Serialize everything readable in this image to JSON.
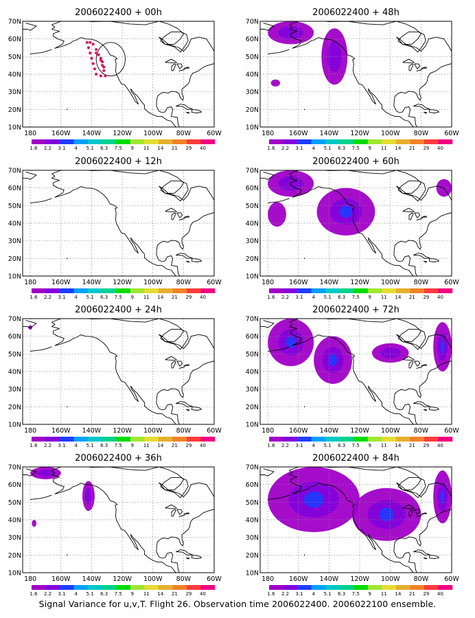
{
  "figure": {
    "caption": "Signal Variance for u,v,T. Flight 26. Observation time 2006022400. 2006022100 ensemble."
  },
  "map": {
    "lat_labels": [
      "70N",
      "60N",
      "50N",
      "40N",
      "30N",
      "20N",
      "10N"
    ],
    "lon_labels": [
      "180",
      "160W",
      "140W",
      "120W",
      "100W",
      "80W",
      "60W"
    ],
    "lat_values": [
      70,
      60,
      50,
      40,
      30,
      20,
      10
    ],
    "lon_values": [
      -180,
      -160,
      -140,
      -120,
      -100,
      -80,
      -60
    ]
  },
  "colorbar": {
    "labels": [
      "1.6",
      "2.2",
      "3.1",
      "4",
      "5.1",
      "6.3",
      "7.5",
      "9",
      "11",
      "14",
      "21",
      "29",
      "40"
    ],
    "colors": [
      "#a000c8",
      "#8200dc",
      "#1e3cff",
      "#00a0ff",
      "#00c8c8",
      "#00d28c",
      "#00dc00",
      "#a0e632",
      "#e6dc32",
      "#e6af2d",
      "#f08228",
      "#fa3c3c",
      "#f00082"
    ]
  },
  "colors": {
    "frame": "#000000",
    "grid": "#888888",
    "coast": "#000000",
    "obs_marker": "#e0105a",
    "variance_low": "#a000c8",
    "variance_mid": "#8200dc",
    "variance_high": "#1e3cff"
  },
  "chart_data": [
    {
      "type": "heatmap",
      "title": "2006022400 + 00h",
      "valid_time": "2006022400",
      "lead": "00h",
      "regions": [],
      "observations": "dropsonde flight track over NE Pacific (approx. 38-58N, 143-128W)",
      "levels": [
        1.6,
        2.2,
        3.1,
        4,
        5.1,
        6.3,
        7.5,
        9,
        11,
        14,
        21,
        29,
        40
      ]
    },
    {
      "type": "heatmap",
      "title": "2006022400 + 12h",
      "valid_time": "2006022400",
      "lead": "12h",
      "regions": [],
      "levels": [
        1.6,
        2.2,
        3.1,
        4,
        5.1,
        6.3,
        7.5,
        9,
        11,
        14,
        21,
        29,
        40
      ]
    },
    {
      "type": "heatmap",
      "title": "2006022400 + 24h",
      "valid_time": "2006022400",
      "lead": "24h",
      "regions": [
        {
          "lon": -180,
          "lat": 65,
          "max_value": 1.6
        }
      ],
      "levels": [
        1.6,
        2.2,
        3.1,
        4,
        5.1,
        6.3,
        7.5,
        9,
        11,
        14,
        21,
        29,
        40
      ]
    },
    {
      "type": "heatmap",
      "title": "2006022400 + 36h",
      "valid_time": "2006022400",
      "lead": "36h",
      "regions": [
        {
          "lon_range": [
            -180,
            -160
          ],
          "lat_range": [
            63,
            70
          ],
          "max_value": 2.2
        },
        {
          "lon_range": [
            -146,
            -138
          ],
          "lat_range": [
            45,
            62
          ],
          "max_value": 2.2
        },
        {
          "lon_range": [
            -179,
            -176
          ],
          "lat_range": [
            36,
            40
          ],
          "max_value": 1.6
        }
      ],
      "levels": [
        1.6,
        2.2,
        3.1,
        4,
        5.1,
        6.3,
        7.5,
        9,
        11,
        14,
        21,
        29,
        40
      ]
    },
    {
      "type": "heatmap",
      "title": "2006022400 + 48h",
      "valid_time": "2006022400",
      "lead": "48h",
      "regions": [
        {
          "lon_range": [
            -180,
            -150
          ],
          "lat_range": [
            57,
            70
          ],
          "max_value": 2.2
        },
        {
          "lon_range": [
            -145,
            -128
          ],
          "lat_range": [
            34,
            66
          ],
          "max_value": 2.2
        },
        {
          "lon_range": [
            -178,
            -172
          ],
          "lat_range": [
            33,
            37
          ],
          "max_value": 1.6
        }
      ],
      "levels": [
        1.6,
        2.2,
        3.1,
        4,
        5.1,
        6.3,
        7.5,
        9,
        11,
        14,
        21,
        29,
        40
      ]
    },
    {
      "type": "heatmap",
      "title": "2006022400 + 60h",
      "valid_time": "2006022400",
      "lead": "60h",
      "regions": [
        {
          "lon_range": [
            -180,
            -150
          ],
          "lat_range": [
            55,
            70
          ],
          "max_value": 2.2
        },
        {
          "lon_range": [
            -148,
            -110
          ],
          "lat_range": [
            33,
            60
          ],
          "max_value": 3.1
        },
        {
          "lon_range": [
            -180,
            -168
          ],
          "lat_range": [
            38,
            52
          ],
          "max_value": 1.6
        },
        {
          "lon_range": [
            -70,
            -60
          ],
          "lat_range": [
            55,
            65
          ],
          "max_value": 1.6
        }
      ],
      "levels": [
        1.6,
        2.2,
        3.1,
        4,
        5.1,
        6.3,
        7.5,
        9,
        11,
        14,
        21,
        29,
        40
      ]
    },
    {
      "type": "heatmap",
      "title": "2006022400 + 72h",
      "valid_time": "2006022400",
      "lead": "72h",
      "regions": [
        {
          "lon_range": [
            -180,
            -150
          ],
          "lat_range": [
            43,
            70
          ],
          "max_value": 3.1
        },
        {
          "lon_range": [
            -150,
            -125
          ],
          "lat_range": [
            33,
            60
          ],
          "max_value": 3.1
        },
        {
          "lon_range": [
            -112,
            -88
          ],
          "lat_range": [
            45,
            56
          ],
          "max_value": 2.2
        },
        {
          "lon_range": [
            -72,
            -60
          ],
          "lat_range": [
            40,
            68
          ],
          "max_value": 3.1
        }
      ],
      "levels": [
        1.6,
        2.2,
        3.1,
        4,
        5.1,
        6.3,
        7.5,
        9,
        11,
        14,
        21,
        29,
        40
      ]
    },
    {
      "type": "heatmap",
      "title": "2006022400 + 84h",
      "valid_time": "2006022400",
      "lead": "84h",
      "regions": [
        {
          "lon_range": [
            -180,
            -120
          ],
          "lat_range": [
            33,
            70
          ],
          "max_value": 3.1
        },
        {
          "lon_range": [
            -125,
            -80
          ],
          "lat_range": [
            28,
            58
          ],
          "max_value": 3.1
        },
        {
          "lon_range": [
            -72,
            -60
          ],
          "lat_range": [
            38,
            68
          ],
          "max_value": 4
        }
      ],
      "levels": [
        1.6,
        2.2,
        3.1,
        4,
        5.1,
        6.3,
        7.5,
        9,
        11,
        14,
        21,
        29,
        40
      ]
    }
  ]
}
